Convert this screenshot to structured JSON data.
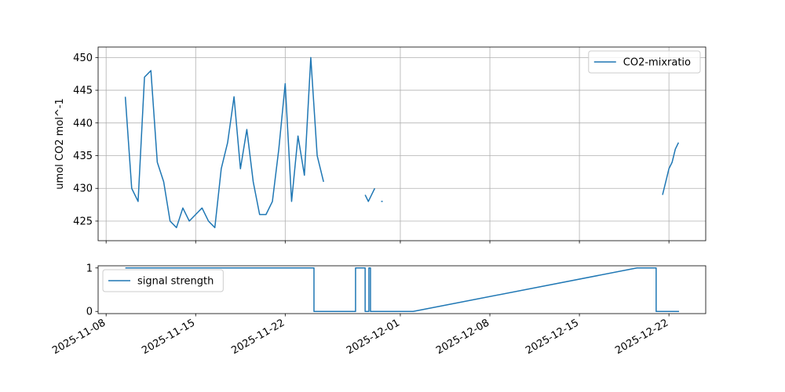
{
  "chart_data": [
    {
      "type": "line",
      "ylabel": "umol CO2 mol^-1",
      "x": [
        "2025-11-09T12:00",
        "2025-11-10T00:00",
        "2025-11-10T12:00",
        "2025-11-11T00:00",
        "2025-11-11T12:00",
        "2025-11-12T00:00",
        "2025-11-12T12:00",
        "2025-11-13T00:00",
        "2025-11-13T12:00",
        "2025-11-14T00:00",
        "2025-11-14T12:00",
        "2025-11-15T00:00",
        "2025-11-15T12:00",
        "2025-11-16T00:00",
        "2025-11-16T12:00",
        "2025-11-17T00:00",
        "2025-11-17T12:00",
        "2025-11-18T00:00",
        "2025-11-18T12:00",
        "2025-11-19T00:00",
        "2025-11-19T12:00",
        "2025-11-20T00:00",
        "2025-11-20T12:00",
        "2025-11-21T00:00",
        "2025-11-21T12:00",
        "2025-11-22T00:00",
        "2025-11-22T12:00",
        "2025-11-23T00:00",
        "2025-11-23T12:00",
        "2025-11-24T00:00",
        "2025-11-24T12:00",
        "2025-11-25T00:00",
        "2025-11-26T12:00",
        "2025-11-28T06:00",
        "2025-11-28T12:00",
        "2025-11-28T18:00",
        "2025-11-29T00:00",
        "2025-11-29T06:00",
        "2025-11-29T12:00",
        "2025-11-29T15:00",
        "2025-12-10T00:00",
        "2025-12-21T12:00",
        "2025-12-21T18:00",
        "2025-12-22T00:00",
        "2025-12-22T06:00",
        "2025-12-22T12:00",
        "2025-12-22T18:00"
      ],
      "series": [
        {
          "name": "CO2-mixratio",
          "color": "#1f77b4",
          "values": [
            444,
            430,
            428,
            447,
            448,
            434,
            431,
            425,
            424,
            427,
            425,
            426,
            427,
            425,
            424,
            433,
            437,
            444,
            433,
            439,
            431,
            426,
            426,
            428,
            436,
            446,
            428,
            438,
            432,
            450,
            435,
            431,
            null,
            429,
            428,
            429,
            430,
            null,
            428,
            428,
            null,
            429,
            431,
            433,
            434,
            436,
            437
          ]
        }
      ],
      "xlim": [
        "2025-11-07T09:00",
        "2025-12-24T21:00"
      ],
      "xticks": [
        "2025-11-08",
        "2025-11-15",
        "2025-11-22",
        "2025-12-01",
        "2025-12-08",
        "2025-12-15",
        "2025-12-22"
      ],
      "xticklabels": false,
      "ylim": [
        422,
        451.6
      ],
      "yticks": [
        425,
        430,
        435,
        440,
        445,
        450
      ],
      "grid": true,
      "legend": "upper right"
    },
    {
      "type": "line",
      "x": [
        "2025-11-09T12:00",
        "2025-11-24T06:00",
        "2025-11-24T06:00",
        "2025-11-27T12:00",
        "2025-11-27T12:00",
        "2025-11-28T06:00",
        "2025-11-28T06:00",
        "2025-11-28T13:00",
        "2025-11-28T13:00",
        "2025-11-28T16:00",
        "2025-11-28T16:00",
        "2025-12-02T00:00",
        "2025-12-19T12:00",
        "2025-12-21T00:00",
        "2025-12-21T00:00",
        "2025-12-22T19:00"
      ],
      "series": [
        {
          "name": "signal strength",
          "color": "#1f77b4",
          "values": [
            1,
            1,
            0,
            0,
            1,
            1,
            0,
            0,
            1,
            1,
            0,
            0,
            1,
            1,
            0,
            0
          ]
        }
      ],
      "xlim": [
        "2025-11-07T09:00",
        "2025-12-24T21:00"
      ],
      "xticks": [
        "2025-11-08",
        "2025-11-15",
        "2025-11-22",
        "2025-12-01",
        "2025-12-08",
        "2025-12-15",
        "2025-12-22"
      ],
      "xticklabels": true,
      "ylim": [
        -0.05,
        1.05
      ],
      "yticks": [
        0,
        1
      ],
      "grid": false,
      "legend": "upper left"
    }
  ]
}
